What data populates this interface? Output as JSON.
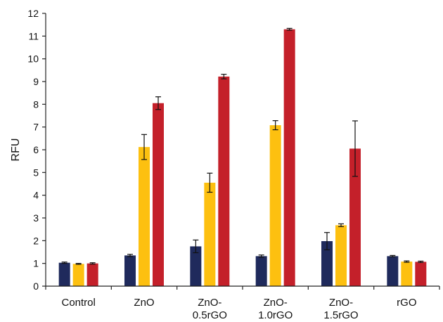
{
  "chart_data": {
    "type": "bar",
    "title": "",
    "xlabel": "",
    "ylabel": "RFU",
    "ylim": [
      0,
      12
    ],
    "yticks": [
      0,
      1,
      2,
      3,
      4,
      5,
      6,
      7,
      8,
      9,
      10,
      11,
      12
    ],
    "categories": [
      [
        "Control"
      ],
      [
        "ZnO"
      ],
      [
        "ZnO-",
        "0.5rGO"
      ],
      [
        "ZnO-",
        "1.0rGO"
      ],
      [
        "ZnO-",
        "1.5rGO"
      ],
      [
        "rGO"
      ]
    ],
    "grid": false,
    "legend": "none",
    "series": [
      {
        "color": "#1f2a5c",
        "values": [
          1.03,
          1.35,
          1.75,
          1.32,
          1.98,
          1.32
        ],
        "errors": [
          0.03,
          0.05,
          0.28,
          0.05,
          0.38,
          0.03
        ]
      },
      {
        "color": "#fdc010",
        "values": [
          0.98,
          6.12,
          4.55,
          7.08,
          2.68,
          1.08
        ],
        "errors": [
          0.02,
          0.55,
          0.42,
          0.2,
          0.06,
          0.03
        ]
      },
      {
        "color": "#c4202a",
        "values": [
          1.0,
          8.05,
          9.22,
          11.3,
          6.05,
          1.07
        ],
        "errors": [
          0.03,
          0.28,
          0.1,
          0.04,
          1.22,
          0.03
        ]
      }
    ]
  }
}
